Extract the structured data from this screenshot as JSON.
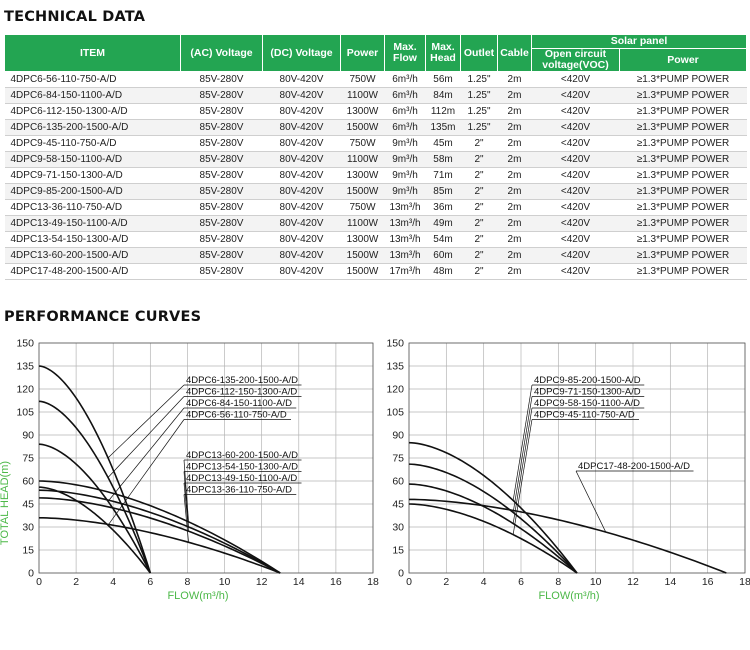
{
  "tech_title": "TECHNICAL DATA",
  "perf_title": "PERFORMANCE CURVES",
  "table": {
    "headers": {
      "item": "ITEM",
      "ac": "(AC) Voltage",
      "dc": "(DC) Voltage",
      "power": "Power",
      "flow": "Max. Flow",
      "head": "Max. Head",
      "outlet": "Outlet",
      "cable": "Cable",
      "solar": "Solar panel",
      "voc": "Open circuit voltage(VOC)",
      "solar_power": "Power"
    },
    "rows": [
      {
        "item": "4DPC6-56-110-750-A/D",
        "ac": "85V-280V",
        "dc": "80V-420V",
        "power": "750W",
        "flow": "6m³/h",
        "head": "56m",
        "outlet": "1.25\"",
        "cable": "2m",
        "voc": "<420V",
        "sp": "≥1.3*PUMP POWER"
      },
      {
        "item": "4DPC6-84-150-1100-A/D",
        "ac": "85V-280V",
        "dc": "80V-420V",
        "power": "1100W",
        "flow": "6m³/h",
        "head": "84m",
        "outlet": "1.25\"",
        "cable": "2m",
        "voc": "<420V",
        "sp": "≥1.3*PUMP POWER"
      },
      {
        "item": "4DPC6-112-150-1300-A/D",
        "ac": "85V-280V",
        "dc": "80V-420V",
        "power": "1300W",
        "flow": "6m³/h",
        "head": "112m",
        "outlet": "1.25\"",
        "cable": "2m",
        "voc": "<420V",
        "sp": "≥1.3*PUMP POWER"
      },
      {
        "item": "4DPC6-135-200-1500-A/D",
        "ac": "85V-280V",
        "dc": "80V-420V",
        "power": "1500W",
        "flow": "6m³/h",
        "head": "135m",
        "outlet": "1.25\"",
        "cable": "2m",
        "voc": "<420V",
        "sp": "≥1.3*PUMP POWER"
      },
      {
        "item": "4DPC9-45-110-750-A/D",
        "ac": "85V-280V",
        "dc": "80V-420V",
        "power": "750W",
        "flow": "9m³/h",
        "head": "45m",
        "outlet": "2\"",
        "cable": "2m",
        "voc": "<420V",
        "sp": "≥1.3*PUMP POWER"
      },
      {
        "item": "4DPC9-58-150-1100-A/D",
        "ac": "85V-280V",
        "dc": "80V-420V",
        "power": "1100W",
        "flow": "9m³/h",
        "head": "58m",
        "outlet": "2\"",
        "cable": "2m",
        "voc": "<420V",
        "sp": "≥1.3*PUMP POWER"
      },
      {
        "item": "4DPC9-71-150-1300-A/D",
        "ac": "85V-280V",
        "dc": "80V-420V",
        "power": "1300W",
        "flow": "9m³/h",
        "head": "71m",
        "outlet": "2\"",
        "cable": "2m",
        "voc": "<420V",
        "sp": "≥1.3*PUMP POWER"
      },
      {
        "item": "4DPC9-85-200-1500-A/D",
        "ac": "85V-280V",
        "dc": "80V-420V",
        "power": "1500W",
        "flow": "9m³/h",
        "head": "85m",
        "outlet": "2\"",
        "cable": "2m",
        "voc": "<420V",
        "sp": "≥1.3*PUMP POWER"
      },
      {
        "item": "4DPC13-36-110-750-A/D",
        "ac": "85V-280V",
        "dc": "80V-420V",
        "power": "750W",
        "flow": "13m³/h",
        "head": "36m",
        "outlet": "2\"",
        "cable": "2m",
        "voc": "<420V",
        "sp": "≥1.3*PUMP POWER"
      },
      {
        "item": "4DPC13-49-150-1100-A/D",
        "ac": "85V-280V",
        "dc": "80V-420V",
        "power": "1100W",
        "flow": "13m³/h",
        "head": "49m",
        "outlet": "2\"",
        "cable": "2m",
        "voc": "<420V",
        "sp": "≥1.3*PUMP POWER"
      },
      {
        "item": "4DPC13-54-150-1300-A/D",
        "ac": "85V-280V",
        "dc": "80V-420V",
        "power": "1300W",
        "flow": "13m³/h",
        "head": "54m",
        "outlet": "2\"",
        "cable": "2m",
        "voc": "<420V",
        "sp": "≥1.3*PUMP POWER"
      },
      {
        "item": "4DPC13-60-200-1500-A/D",
        "ac": "85V-280V",
        "dc": "80V-420V",
        "power": "1500W",
        "flow": "13m³/h",
        "head": "60m",
        "outlet": "2\"",
        "cable": "2m",
        "voc": "<420V",
        "sp": "≥1.3*PUMP POWER"
      },
      {
        "item": "4DPC17-48-200-1500-A/D",
        "ac": "85V-280V",
        "dc": "80V-420V",
        "power": "1500W",
        "flow": "17m³/h",
        "head": "48m",
        "outlet": "2\"",
        "cable": "2m",
        "voc": "<420V",
        "sp": "≥1.3*PUMP POWER"
      }
    ]
  },
  "colors": {
    "header_green": "#23a552",
    "axis_label_green": "#4cb848"
  },
  "chart_data": [
    {
      "type": "line",
      "xlabel": "FLOW(m³/h)",
      "ylabel": "TOTAL HEAD(m)",
      "xlim": [
        0,
        18
      ],
      "ylim": [
        0,
        150
      ],
      "xticks": [
        0,
        2,
        4,
        6,
        8,
        10,
        12,
        14,
        16,
        18
      ],
      "yticks": [
        0,
        15,
        30,
        45,
        60,
        75,
        90,
        105,
        120,
        135,
        150
      ],
      "grid": true,
      "series": [
        {
          "name": "4DPC6-135-200-1500-A/D",
          "max_head": 135,
          "max_flow": 6
        },
        {
          "name": "4DPC6-112-150-1300-A/D",
          "max_head": 112,
          "max_flow": 6
        },
        {
          "name": "4DPC6-84-150-1100-A/D",
          "max_head": 84,
          "max_flow": 6
        },
        {
          "name": "4DPC6-56-110-750-A/D",
          "max_head": 56,
          "max_flow": 6
        },
        {
          "name": "4DPC13-60-200-1500-A/D",
          "max_head": 60,
          "max_flow": 13
        },
        {
          "name": "4DPC13-54-150-1300-A/D",
          "max_head": 54,
          "max_flow": 13
        },
        {
          "name": "4DPC13-49-150-1100-A/D",
          "max_head": 49,
          "max_flow": 13
        },
        {
          "name": "4DPC13-36-110-750-A/D",
          "max_head": 36,
          "max_flow": 13
        }
      ]
    },
    {
      "type": "line",
      "xlabel": "FLOW(m³/h)",
      "ylabel": "",
      "xlim": [
        0,
        18
      ],
      "ylim": [
        0,
        150
      ],
      "xticks": [
        0,
        2,
        4,
        6,
        8,
        10,
        12,
        14,
        16,
        18
      ],
      "yticks": [
        0,
        15,
        30,
        45,
        60,
        75,
        90,
        105,
        120,
        135,
        150
      ],
      "grid": true,
      "series": [
        {
          "name": "4DPC9-85-200-1500-A/D",
          "max_head": 85,
          "max_flow": 9
        },
        {
          "name": "4DPC9-71-150-1300-A/D",
          "max_head": 71,
          "max_flow": 9
        },
        {
          "name": "4DPC9-58-150-1100-A/D",
          "max_head": 58,
          "max_flow": 9
        },
        {
          "name": "4DPC9-45-110-750-A/D",
          "max_head": 45,
          "max_flow": 9
        },
        {
          "name": "4DPC17-48-200-1500-A/D",
          "max_head": 48,
          "max_flow": 17
        }
      ]
    }
  ]
}
